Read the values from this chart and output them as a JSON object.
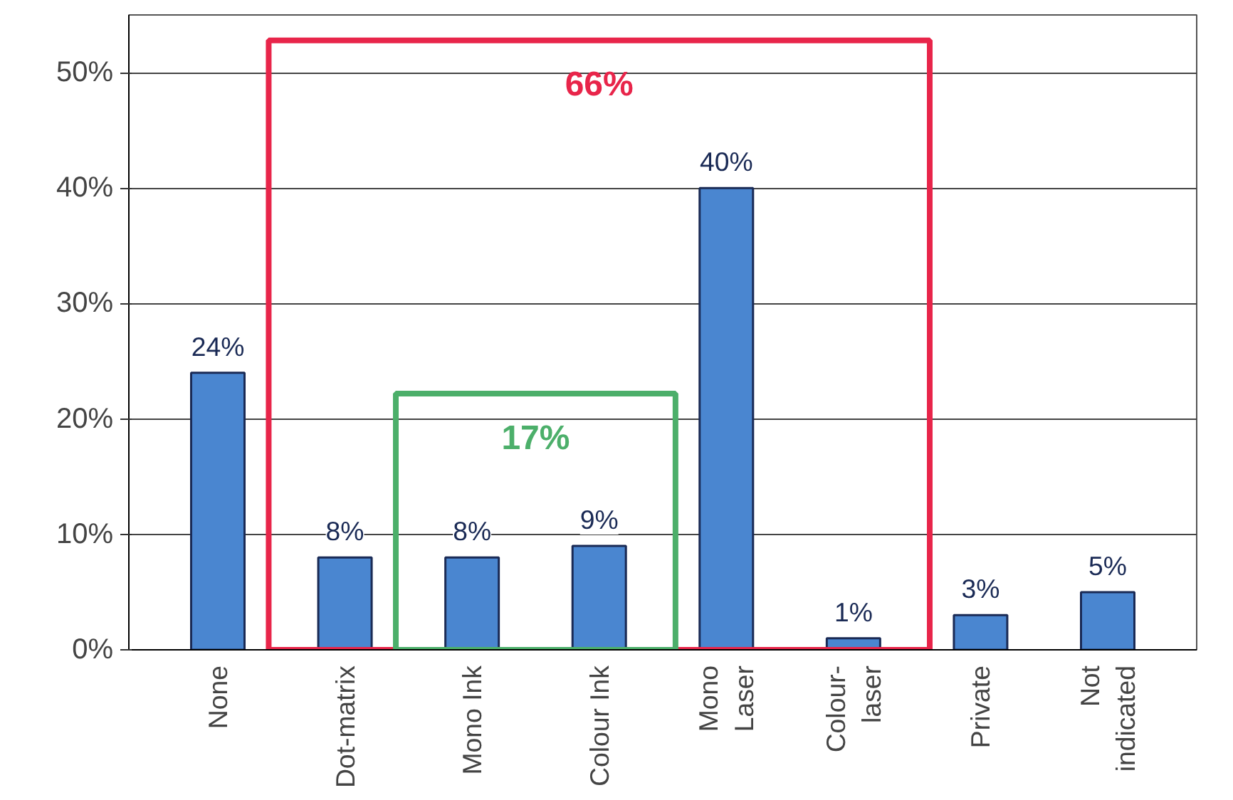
{
  "chart_data": {
    "type": "bar",
    "categories": [
      "None",
      "Dot-matrix",
      "Mono Ink",
      "Colour Ink",
      "Mono\nLaser",
      "Colour-\nlaser",
      "Private",
      "Not\nindicated"
    ],
    "values": [
      24,
      8,
      8,
      9,
      40,
      1,
      3,
      5
    ],
    "value_labels": [
      "24%",
      "8%",
      "8%",
      "9%",
      "40%",
      "1%",
      "3%",
      "5%"
    ],
    "color": "#4a86d0",
    "ylim": [
      0,
      55
    ],
    "yticks": [
      {
        "value": 0,
        "label": "0%"
      },
      {
        "value": 10,
        "label": "10%"
      },
      {
        "value": 20,
        "label": "20%"
      },
      {
        "value": 30,
        "label": "30%"
      },
      {
        "value": 40,
        "label": "40%"
      },
      {
        "value": 50,
        "label": "50%"
      }
    ],
    "grid": "y",
    "annotations": [
      "66%",
      "17%"
    ]
  }
}
